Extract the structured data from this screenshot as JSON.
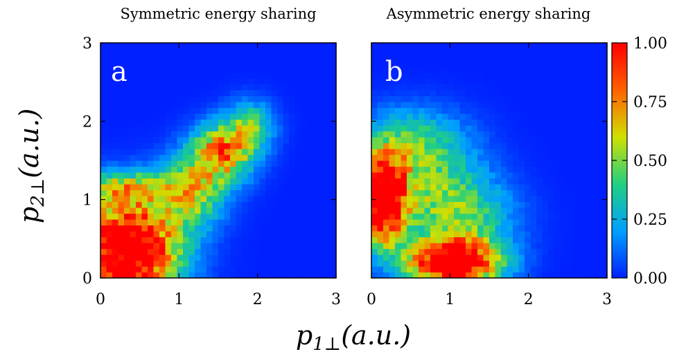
{
  "chart_data": [
    {
      "type": "heatmap",
      "title": "Symmetric energy sharing",
      "panel_label": "a",
      "xlabel": "p1⊥(a.u.)",
      "ylabel": "p2⊥(a.u.)",
      "xlim": [
        0,
        3
      ],
      "ylim": [
        0,
        3
      ],
      "xticks": [
        "0",
        "1",
        "2",
        "3"
      ],
      "yticks": [
        "0",
        "1",
        "2",
        "3"
      ],
      "grid": false,
      "blobs": [
        {
          "x": 0.35,
          "y": 0.35,
          "sx": 0.45,
          "sy": 0.45,
          "amp": 1.3
        },
        {
          "x": 1.55,
          "y": 1.6,
          "sx": 0.28,
          "sy": 0.25,
          "amp": 0.75
        },
        {
          "x": 1.15,
          "y": 1.1,
          "sx": 0.3,
          "sy": 0.3,
          "amp": 0.55
        },
        {
          "x": 1.9,
          "y": 1.95,
          "sx": 0.22,
          "sy": 0.22,
          "amp": 0.4
        },
        {
          "x": 0.3,
          "y": 1.15,
          "sx": 0.35,
          "sy": 0.15,
          "amp": 0.45
        }
      ]
    },
    {
      "type": "heatmap",
      "title": "Asymmetric energy sharing",
      "panel_label": "b",
      "xlabel": "p1⊥(a.u.)",
      "ylabel": "p2⊥(a.u.)",
      "xlim": [
        0,
        3
      ],
      "ylim": [
        0,
        3
      ],
      "xticks": [
        "0",
        "1",
        "2",
        "3"
      ],
      "yticks": [
        "0",
        "1",
        "2",
        "3"
      ],
      "grid": false,
      "blobs": [
        {
          "x": 0.15,
          "y": 1.0,
          "sx": 0.2,
          "sy": 0.38,
          "amp": 1.3
        },
        {
          "x": 1.05,
          "y": 0.2,
          "sx": 0.4,
          "sy": 0.2,
          "amp": 1.3
        },
        {
          "x": 0.7,
          "y": 1.2,
          "sx": 0.5,
          "sy": 0.45,
          "amp": 0.35
        },
        {
          "x": 1.2,
          "y": 0.75,
          "sx": 0.45,
          "sy": 0.35,
          "amp": 0.35
        },
        {
          "x": 0.5,
          "y": 1.75,
          "sx": 0.45,
          "sy": 0.3,
          "amp": 0.3
        }
      ]
    }
  ],
  "colorbar": {
    "range": [
      0,
      1
    ],
    "tick_labels": [
      "0.00",
      "0.25",
      "0.50",
      "0.75",
      "1.00"
    ],
    "tick_values": [
      0,
      0.25,
      0.5,
      0.75,
      1.0
    ],
    "colormap": [
      "#0020ff",
      "#00a0ff",
      "#20d080",
      "#d0e000",
      "#ff6000",
      "#ff0000"
    ]
  },
  "shared_axis_labels": {
    "x": {
      "base": "p",
      "sub": "1⊥",
      "unit": "(a.u.)"
    },
    "y": {
      "base": "p",
      "sub": "2⊥",
      "unit": "(a.u.)"
    }
  }
}
